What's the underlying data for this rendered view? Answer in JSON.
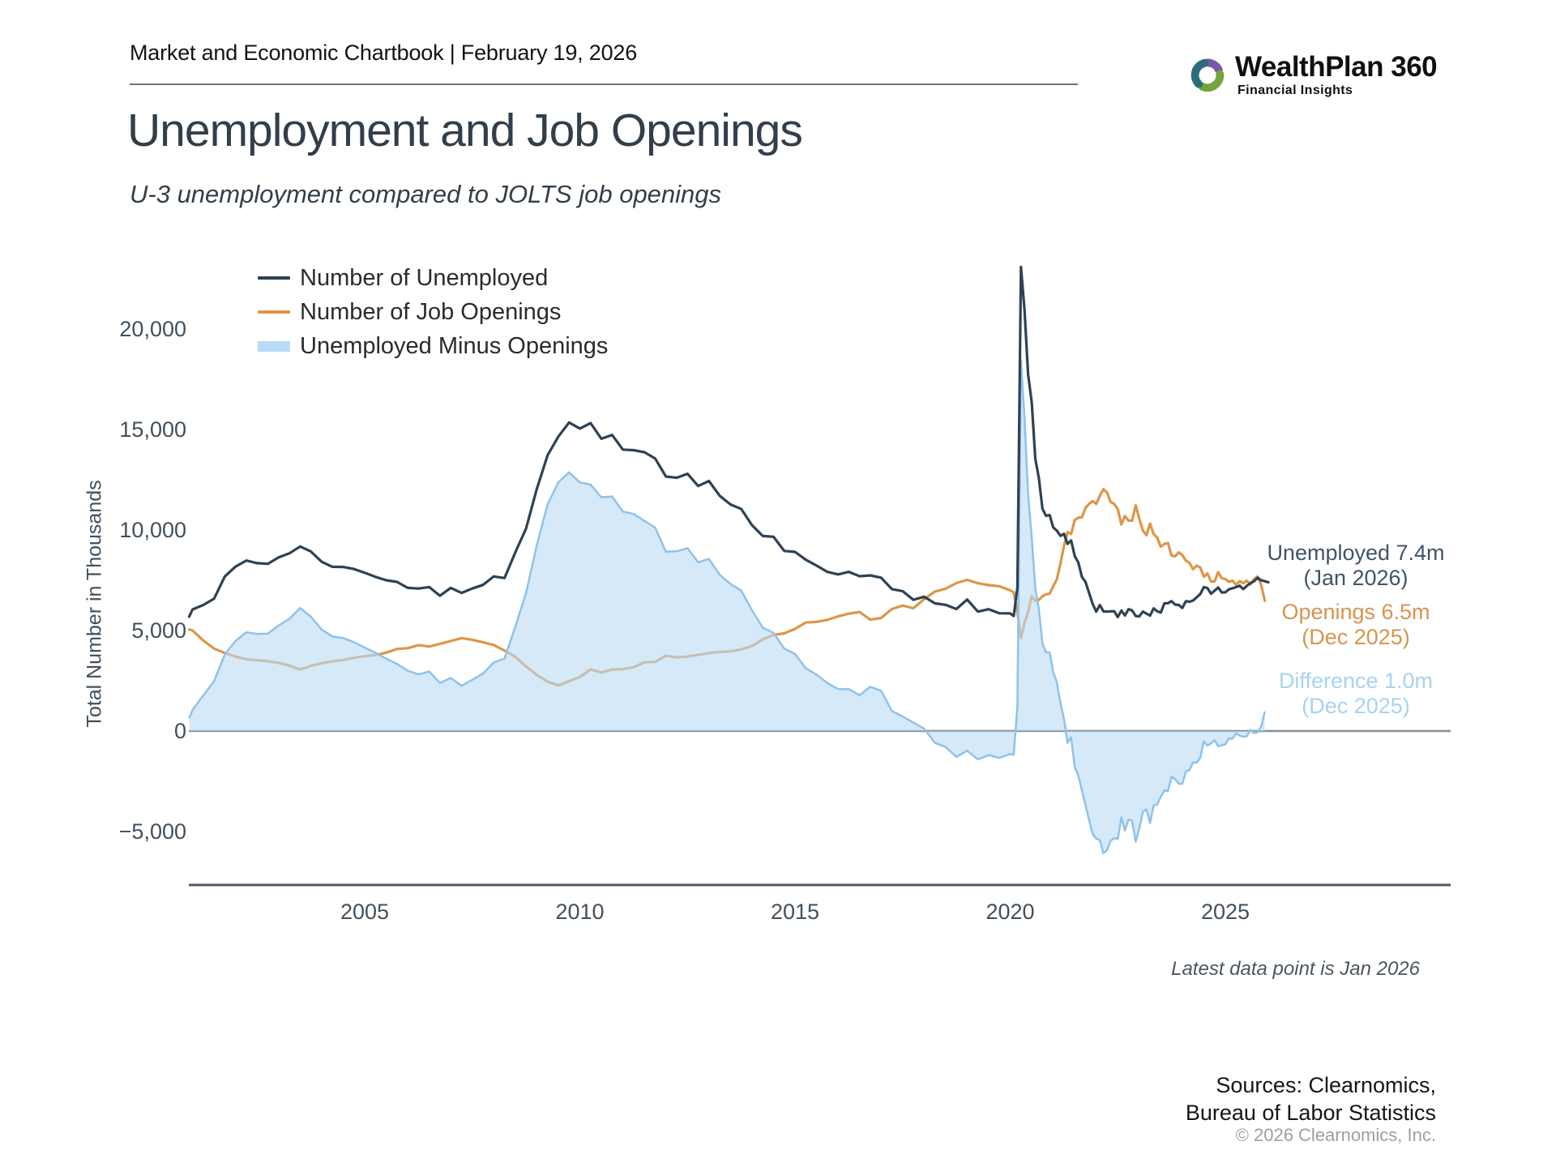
{
  "header": {
    "title": "Market and Economic Chartbook | February 19, 2026",
    "logo": {
      "brand": "WealthPlan 360",
      "tagline": "Financial Insights",
      "colors": {
        "purple": "#7a58a5",
        "green": "#74a340",
        "teal": "#2a6e7d"
      }
    }
  },
  "title": "Unemployment and Job Openings",
  "subtitle": "U-3 unemployment compared to JOLTS job openings",
  "legend": [
    {
      "label": "Number of Unemployed",
      "swatch_color": "#2e4254",
      "swatch_type": "line"
    },
    {
      "label": "Number of Job Openings",
      "swatch_color": "#de9549",
      "swatch_type": "line"
    },
    {
      "label": "Unemployed Minus Openings",
      "swatch_color": "#b9dbf5",
      "swatch_type": "area"
    }
  ],
  "annotations": {
    "unemployed": {
      "value_line": "Unemployed 7.4m",
      "date_line": "(Jan 2026)",
      "color": "#405469"
    },
    "openings": {
      "value_line": "Openings 6.5m",
      "date_line": "(Dec 2025)",
      "color": "#d69450"
    },
    "difference": {
      "value_line": "Difference 1.0m",
      "date_line": "(Dec 2025)",
      "color": "#a7d3f3"
    }
  },
  "footnote": "Latest data point is Jan 2026",
  "sources": {
    "line1": "Sources: Clearnomics,",
    "line2": "Bureau of Labor Statistics",
    "copyright": "© 2026 Clearnomics, Inc."
  },
  "chart_data": {
    "type": "line",
    "title": "Unemployment and Job Openings",
    "xlabel": "",
    "ylabel": "Total Number in Thousands",
    "x_unit": "decimal_year (monthly/quarterly samples)",
    "xlim": [
      2000.92,
      2030.2
    ],
    "ylim": [
      -7800,
      24000
    ],
    "grid": false,
    "legend_position": "top-left",
    "baseline": 0,
    "y_ticks": [
      {
        "v": 20000,
        "label": "20,000"
      },
      {
        "v": 15000,
        "label": "15,000"
      },
      {
        "v": 10000,
        "label": "10,000"
      },
      {
        "v": 5000,
        "label": "5,000"
      },
      {
        "v": 0,
        "label": "0"
      },
      {
        "v": -5000,
        "label": "−5,000"
      }
    ],
    "x_ticks": [
      {
        "v": 2005,
        "label": "2005"
      },
      {
        "v": 2010,
        "label": "2010"
      },
      {
        "v": 2015,
        "label": "2015"
      },
      {
        "v": 2020,
        "label": "2020"
      },
      {
        "v": 2025,
        "label": "2025"
      }
    ],
    "x": [
      2000.92,
      2001.0,
      2001.25,
      2001.5,
      2001.75,
      2002.0,
      2002.25,
      2002.5,
      2002.75,
      2003.0,
      2003.25,
      2003.5,
      2003.75,
      2004.0,
      2004.25,
      2004.5,
      2004.75,
      2005.0,
      2005.25,
      2005.5,
      2005.75,
      2006.0,
      2006.25,
      2006.5,
      2006.75,
      2007.0,
      2007.25,
      2007.5,
      2007.75,
      2008.0,
      2008.25,
      2008.5,
      2008.75,
      2009.0,
      2009.25,
      2009.5,
      2009.75,
      2010.0,
      2010.25,
      2010.5,
      2010.75,
      2011.0,
      2011.25,
      2011.5,
      2011.75,
      2012.0,
      2012.25,
      2012.5,
      2012.75,
      2013.0,
      2013.25,
      2013.5,
      2013.75,
      2014.0,
      2014.25,
      2014.5,
      2014.75,
      2015.0,
      2015.25,
      2015.5,
      2015.75,
      2016.0,
      2016.25,
      2016.5,
      2016.75,
      2017.0,
      2017.25,
      2017.5,
      2017.75,
      2018.0,
      2018.25,
      2018.5,
      2018.75,
      2019.0,
      2019.25,
      2019.5,
      2019.75,
      2020.0,
      2020.083,
      2020.167,
      2020.25,
      2020.333,
      2020.417,
      2020.5,
      2020.583,
      2020.667,
      2020.75,
      2020.833,
      2020.917,
      2021.0,
      2021.083,
      2021.167,
      2021.25,
      2021.333,
      2021.417,
      2021.5,
      2021.583,
      2021.667,
      2021.75,
      2021.833,
      2021.917,
      2022.0,
      2022.083,
      2022.167,
      2022.25,
      2022.333,
      2022.417,
      2022.5,
      2022.583,
      2022.667,
      2022.75,
      2022.833,
      2022.917,
      2023.0,
      2023.083,
      2023.167,
      2023.25,
      2023.333,
      2023.417,
      2023.5,
      2023.583,
      2023.667,
      2023.75,
      2023.833,
      2023.917,
      2024.0,
      2024.083,
      2024.167,
      2024.25,
      2024.333,
      2024.417,
      2024.5,
      2024.583,
      2024.667,
      2024.75,
      2024.833,
      2024.917,
      2025.0,
      2025.083,
      2025.167,
      2025.25,
      2025.333,
      2025.417,
      2025.5,
      2025.583,
      2025.667,
      2025.75,
      2025.833,
      2025.917,
      2026.0
    ],
    "series": [
      {
        "name": "Number of Unemployed",
        "z": 3,
        "color": "#2e4254",
        "latest": {
          "label": "Unemployed 7.4m",
          "date": "Jan 2026",
          "value": 7400
        },
        "values": [
          5690,
          6050,
          6270,
          6580,
          7690,
          8180,
          8480,
          8350,
          8320,
          8640,
          8840,
          9180,
          8930,
          8420,
          8170,
          8160,
          8060,
          7870,
          7670,
          7500,
          7420,
          7120,
          7090,
          7160,
          6730,
          7120,
          6870,
          7090,
          7270,
          7690,
          7610,
          8890,
          10070,
          12050,
          13720,
          14650,
          15350,
          15050,
          15320,
          14540,
          14730,
          14000,
          13970,
          13870,
          13560,
          12660,
          12600,
          12800,
          12190,
          12440,
          11700,
          11270,
          11050,
          10240,
          9700,
          9660,
          8960,
          8910,
          8520,
          8230,
          7920,
          7790,
          7920,
          7700,
          7740,
          7630,
          7060,
          6960,
          6530,
          6680,
          6350,
          6280,
          6070,
          6540,
          5940,
          6060,
          5860,
          5850,
          5720,
          7140,
          23090,
          20950,
          17750,
          16340,
          13550,
          12580,
          11060,
          10710,
          10740,
          10130,
          9970,
          9710,
          9810,
          9310,
          9480,
          8700,
          8380,
          7670,
          7420,
          6880,
          6320,
          5940,
          6270,
          5950,
          5940,
          5950,
          5960,
          5670,
          5990,
          5750,
          6060,
          6000,
          5720,
          5700,
          5940,
          5840,
          5740,
          6100,
          5960,
          5890,
          6350,
          6360,
          6460,
          6290,
          6270,
          6120,
          6460,
          6430,
          6490,
          6650,
          6810,
          7160,
          7110,
          6830,
          6980,
          7140,
          6890,
          6900,
          7050,
          7100,
          7160,
          7230,
          7060,
          7220,
          7360,
          7450,
          7620,
          7500,
          7450,
          7400
        ]
      },
      {
        "name": "Number of Job Openings",
        "z": 1,
        "color": "#de9549",
        "latest": {
          "label": "Openings 6.5m",
          "date": "Dec 2025",
          "value": 6480
        },
        "values": [
          5050,
          5000,
          4500,
          4100,
          3880,
          3700,
          3570,
          3520,
          3470,
          3390,
          3260,
          3060,
          3240,
          3370,
          3470,
          3530,
          3640,
          3720,
          3780,
          3900,
          4080,
          4120,
          4270,
          4200,
          4340,
          4480,
          4620,
          4540,
          4410,
          4280,
          4000,
          3690,
          3210,
          2790,
          2450,
          2270,
          2480,
          2680,
          3060,
          2910,
          3060,
          3080,
          3170,
          3420,
          3440,
          3740,
          3660,
          3700,
          3790,
          3880,
          3930,
          3960,
          4060,
          4230,
          4560,
          4780,
          4860,
          5080,
          5400,
          5430,
          5530,
          5700,
          5840,
          5920,
          5540,
          5620,
          6070,
          6240,
          6110,
          6560,
          6940,
          7080,
          7360,
          7520,
          7350,
          7260,
          7200,
          7000,
          6900,
          5910,
          4630,
          5370,
          5940,
          6700,
          6470,
          6520,
          6700,
          6800,
          6830,
          7200,
          7540,
          8320,
          9210,
          9900,
          9800,
          10500,
          10610,
          10630,
          11100,
          11300,
          11440,
          11300,
          11700,
          12030,
          11870,
          11400,
          11300,
          11040,
          10280,
          10700,
          10470,
          10460,
          11230,
          10560,
          9970,
          9740,
          10320,
          9800,
          9620,
          9170,
          9310,
          9350,
          8730,
          8690,
          8890,
          8750,
          8480,
          8360,
          8050,
          8230,
          8140,
          7670,
          7840,
          7440,
          7440,
          7900,
          7600,
          7560,
          7420,
          7480,
          7280,
          7460,
          7350,
          7480,
          7300,
          7560,
          7680,
          7280,
          6480,
          null
        ]
      },
      {
        "name": "Unemployed Minus Openings",
        "z": 2,
        "area": true,
        "fill": "#b9dbf5",
        "fill_opacity": 0.6,
        "stroke": "#8fc2ea",
        "latest": {
          "label": "Difference 1.0m",
          "date": "Dec 2025",
          "value": 970
        },
        "values": [
          640,
          1050,
          1770,
          2480,
          3810,
          4480,
          4910,
          4830,
          4850,
          5250,
          5580,
          6120,
          5690,
          5050,
          4700,
          4630,
          4420,
          4150,
          3890,
          3600,
          3340,
          3000,
          2820,
          2960,
          2390,
          2640,
          2250,
          2550,
          2860,
          3410,
          3610,
          5200,
          6860,
          9260,
          11270,
          12380,
          12870,
          12370,
          12260,
          11630,
          11670,
          10920,
          10800,
          10450,
          10120,
          8920,
          8940,
          9100,
          8400,
          8560,
          7770,
          7310,
          6990,
          6010,
          5140,
          4880,
          4100,
          3830,
          3120,
          2800,
          2390,
          2090,
          2080,
          1780,
          2200,
          2010,
          990,
          720,
          420,
          120,
          -590,
          -800,
          -1290,
          -980,
          -1410,
          -1200,
          -1340,
          -1150,
          -1180,
          1230,
          18460,
          15580,
          11810,
          9640,
          7080,
          6060,
          4360,
          3910,
          3910,
          2930,
          2430,
          1390,
          600,
          -590,
          -320,
          -1800,
          -2230,
          -2960,
          -3680,
          -4420,
          -5120,
          -5360,
          -5430,
          -6080,
          -5930,
          -5450,
          -5340,
          -5370,
          -4290,
          -4950,
          -4410,
          -4460,
          -5510,
          -4860,
          -4030,
          -3900,
          -4580,
          -3700,
          -3660,
          -3280,
          -2960,
          -2990,
          -2270,
          -2400,
          -2620,
          -2630,
          -2020,
          -1930,
          -1560,
          -1580,
          -1330,
          -510,
          -730,
          -610,
          -460,
          -760,
          -710,
          -660,
          -370,
          -380,
          -120,
          -230,
          -290,
          -260,
          60,
          -110,
          -60,
          220,
          970,
          null
        ]
      }
    ]
  }
}
